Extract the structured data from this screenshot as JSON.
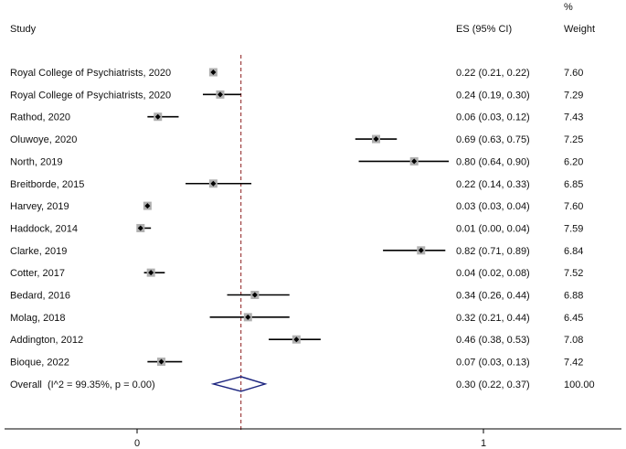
{
  "headers": {
    "study": "Study",
    "es": "ES (95% CI)",
    "weight_line1": "%",
    "weight_line2": "Weight"
  },
  "chart_data": {
    "type": "forest",
    "title": "",
    "xlabel": "",
    "ylabel": "",
    "x_ticks": [
      0,
      1
    ],
    "xlim": [
      -0.4,
      1.4
    ],
    "reference_line": 0.3,
    "studies": [
      {
        "label": "Royal College of Psychiatrists, 2020",
        "es": 0.22,
        "lo": 0.21,
        "hi": 0.22,
        "es_text": "0.22 (0.21, 0.22)",
        "weight": "7.60"
      },
      {
        "label": "Royal College of Psychiatrists, 2020",
        "es": 0.24,
        "lo": 0.19,
        "hi": 0.3,
        "es_text": "0.24 (0.19, 0.30)",
        "weight": "7.29"
      },
      {
        "label": "Rathod, 2020",
        "es": 0.06,
        "lo": 0.03,
        "hi": 0.12,
        "es_text": "0.06 (0.03, 0.12)",
        "weight": "7.43"
      },
      {
        "label": "Oluwoye, 2020",
        "es": 0.69,
        "lo": 0.63,
        "hi": 0.75,
        "es_text": "0.69 (0.63, 0.75)",
        "weight": "7.25"
      },
      {
        "label": "North, 2019",
        "es": 0.8,
        "lo": 0.64,
        "hi": 0.9,
        "es_text": "0.80 (0.64, 0.90)",
        "weight": "6.20"
      },
      {
        "label": "Breitborde, 2015",
        "es": 0.22,
        "lo": 0.14,
        "hi": 0.33,
        "es_text": "0.22 (0.14, 0.33)",
        "weight": "6.85"
      },
      {
        "label": "Harvey, 2019",
        "es": 0.03,
        "lo": 0.03,
        "hi": 0.04,
        "es_text": "0.03 (0.03, 0.04)",
        "weight": "7.60"
      },
      {
        "label": "Haddock, 2014",
        "es": 0.01,
        "lo": 0.0,
        "hi": 0.04,
        "es_text": "0.01 (0.00, 0.04)",
        "weight": "7.59"
      },
      {
        "label": "Clarke, 2019",
        "es": 0.82,
        "lo": 0.71,
        "hi": 0.89,
        "es_text": "0.82 (0.71, 0.89)",
        "weight": "6.84"
      },
      {
        "label": "Cotter, 2017",
        "es": 0.04,
        "lo": 0.02,
        "hi": 0.08,
        "es_text": "0.04 (0.02, 0.08)",
        "weight": "7.52"
      },
      {
        "label": "Bedard, 2016",
        "es": 0.34,
        "lo": 0.26,
        "hi": 0.44,
        "es_text": "0.34 (0.26, 0.44)",
        "weight": "6.88"
      },
      {
        "label": "Molag, 2018",
        "es": 0.32,
        "lo": 0.21,
        "hi": 0.44,
        "es_text": "0.32 (0.21, 0.44)",
        "weight": "6.45"
      },
      {
        "label": "Addington, 2012",
        "es": 0.46,
        "lo": 0.38,
        "hi": 0.53,
        "es_text": "0.46 (0.38, 0.53)",
        "weight": "7.08"
      },
      {
        "label": "Bioque, 2022",
        "es": 0.07,
        "lo": 0.03,
        "hi": 0.13,
        "es_text": "0.07 (0.03, 0.13)",
        "weight": "7.42"
      }
    ],
    "overall": {
      "label": "Overall  (I^2 = 99.35%, p = 0.00)",
      "es": 0.3,
      "lo": 0.22,
      "hi": 0.37,
      "es_text": "0.30 (0.22, 0.37)",
      "weight": "100.00"
    },
    "colors": {
      "ci_line": "#000000",
      "marker_box": "#b0b0b0",
      "marker": "#000000",
      "reference_line": "#8b1a1a",
      "diamond": "#1a237e"
    }
  }
}
